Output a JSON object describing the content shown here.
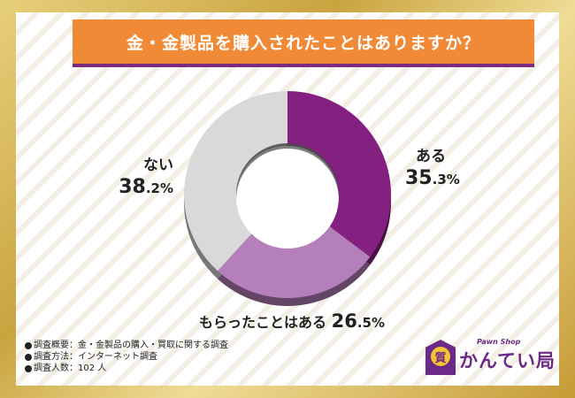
{
  "title": "金・金製品を購入されたことはありますか？",
  "chart_data": {
    "type": "pie",
    "categories": [
      "ある",
      "もらったことはある",
      "ない"
    ],
    "values": [
      35.3,
      26.5,
      38.2
    ],
    "value_labels": [
      "35.3%",
      "26.5%",
      "38.2%"
    ],
    "colors": [
      "#84207f",
      "#b47fba",
      "#d9d9d9"
    ],
    "donut": true
  },
  "footnotes": [
    "調査概要：金・金製品の購入・買取に関する調査",
    "調査方法：インターネット調査",
    "調査人数：102 人"
  ],
  "logo": {
    "brand": "かんてい局",
    "tagline": "Pawn Shop",
    "badge_char": "質"
  }
}
